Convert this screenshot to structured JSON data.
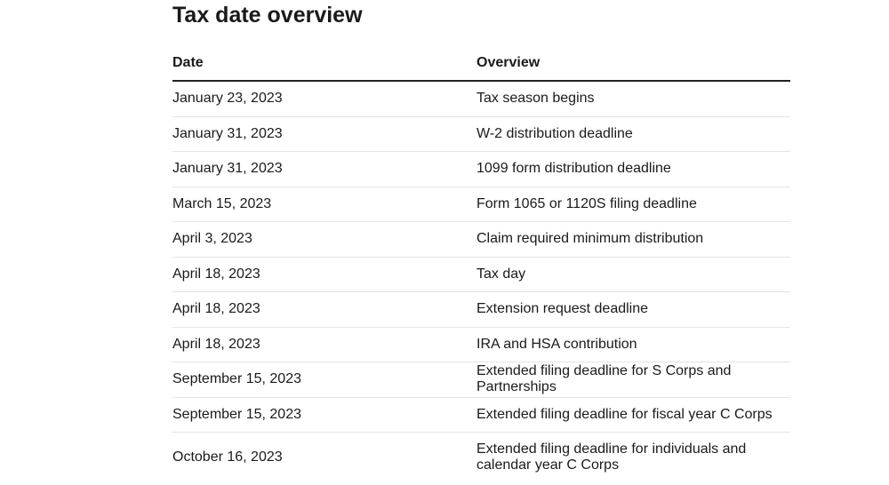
{
  "header": {
    "title": "Tax date overview"
  },
  "table": {
    "columns": [
      "Date",
      "Overview"
    ],
    "rows": [
      [
        "January 23, 2023",
        "Tax season begins"
      ],
      [
        "January 31, 2023",
        "W-2 distribution deadline"
      ],
      [
        "January 31, 2023",
        "1099 form distribution deadline"
      ],
      [
        "March 15, 2023",
        "Form 1065 or 1120S filing deadline"
      ],
      [
        "April 3, 2023",
        "Claim required minimum distribution"
      ],
      [
        "April 18, 2023",
        "Tax day"
      ],
      [
        "April 18, 2023",
        "Extension request deadline"
      ],
      [
        "April 18, 2023",
        "IRA and HSA contribution"
      ],
      [
        "September 15, 2023",
        "Extended filing deadline for S Corps and Partnerships"
      ],
      [
        "September 15, 2023",
        "Extended filing deadline for fiscal year C Corps"
      ],
      [
        "October 16, 2023",
        "Extended filing deadline for individuals and calendar year C Corps"
      ]
    ]
  }
}
